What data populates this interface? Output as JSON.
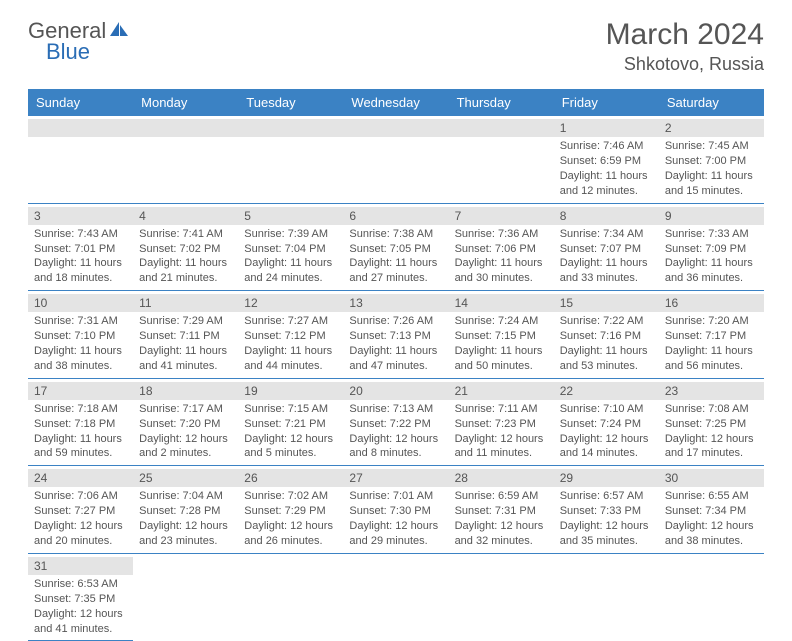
{
  "logo": {
    "general": "General",
    "blue": "Blue"
  },
  "title": "March 2024",
  "location": "Shkotovo, Russia",
  "day_headers": [
    "Sunday",
    "Monday",
    "Tuesday",
    "Wednesday",
    "Thursday",
    "Friday",
    "Saturday"
  ],
  "colors": {
    "header_bg": "#3b82c4",
    "divider": "#3b82c4",
    "daynum_bg": "#e4e4e4",
    "text": "#555555",
    "page_bg": "#ffffff",
    "logo_blue": "#2a6db5"
  },
  "weeks": [
    [
      {
        "empty": true
      },
      {
        "empty": true
      },
      {
        "empty": true
      },
      {
        "empty": true
      },
      {
        "empty": true
      },
      {
        "day": "1",
        "sunrise": "Sunrise: 7:46 AM",
        "sunset": "Sunset: 6:59 PM",
        "daylight": "Daylight: 11 hours and 12 minutes."
      },
      {
        "day": "2",
        "sunrise": "Sunrise: 7:45 AM",
        "sunset": "Sunset: 7:00 PM",
        "daylight": "Daylight: 11 hours and 15 minutes."
      }
    ],
    [
      {
        "day": "3",
        "sunrise": "Sunrise: 7:43 AM",
        "sunset": "Sunset: 7:01 PM",
        "daylight": "Daylight: 11 hours and 18 minutes."
      },
      {
        "day": "4",
        "sunrise": "Sunrise: 7:41 AM",
        "sunset": "Sunset: 7:02 PM",
        "daylight": "Daylight: 11 hours and 21 minutes."
      },
      {
        "day": "5",
        "sunrise": "Sunrise: 7:39 AM",
        "sunset": "Sunset: 7:04 PM",
        "daylight": "Daylight: 11 hours and 24 minutes."
      },
      {
        "day": "6",
        "sunrise": "Sunrise: 7:38 AM",
        "sunset": "Sunset: 7:05 PM",
        "daylight": "Daylight: 11 hours and 27 minutes."
      },
      {
        "day": "7",
        "sunrise": "Sunrise: 7:36 AM",
        "sunset": "Sunset: 7:06 PM",
        "daylight": "Daylight: 11 hours and 30 minutes."
      },
      {
        "day": "8",
        "sunrise": "Sunrise: 7:34 AM",
        "sunset": "Sunset: 7:07 PM",
        "daylight": "Daylight: 11 hours and 33 minutes."
      },
      {
        "day": "9",
        "sunrise": "Sunrise: 7:33 AM",
        "sunset": "Sunset: 7:09 PM",
        "daylight": "Daylight: 11 hours and 36 minutes."
      }
    ],
    [
      {
        "day": "10",
        "sunrise": "Sunrise: 7:31 AM",
        "sunset": "Sunset: 7:10 PM",
        "daylight": "Daylight: 11 hours and 38 minutes."
      },
      {
        "day": "11",
        "sunrise": "Sunrise: 7:29 AM",
        "sunset": "Sunset: 7:11 PM",
        "daylight": "Daylight: 11 hours and 41 minutes."
      },
      {
        "day": "12",
        "sunrise": "Sunrise: 7:27 AM",
        "sunset": "Sunset: 7:12 PM",
        "daylight": "Daylight: 11 hours and 44 minutes."
      },
      {
        "day": "13",
        "sunrise": "Sunrise: 7:26 AM",
        "sunset": "Sunset: 7:13 PM",
        "daylight": "Daylight: 11 hours and 47 minutes."
      },
      {
        "day": "14",
        "sunrise": "Sunrise: 7:24 AM",
        "sunset": "Sunset: 7:15 PM",
        "daylight": "Daylight: 11 hours and 50 minutes."
      },
      {
        "day": "15",
        "sunrise": "Sunrise: 7:22 AM",
        "sunset": "Sunset: 7:16 PM",
        "daylight": "Daylight: 11 hours and 53 minutes."
      },
      {
        "day": "16",
        "sunrise": "Sunrise: 7:20 AM",
        "sunset": "Sunset: 7:17 PM",
        "daylight": "Daylight: 11 hours and 56 minutes."
      }
    ],
    [
      {
        "day": "17",
        "sunrise": "Sunrise: 7:18 AM",
        "sunset": "Sunset: 7:18 PM",
        "daylight": "Daylight: 11 hours and 59 minutes."
      },
      {
        "day": "18",
        "sunrise": "Sunrise: 7:17 AM",
        "sunset": "Sunset: 7:20 PM",
        "daylight": "Daylight: 12 hours and 2 minutes."
      },
      {
        "day": "19",
        "sunrise": "Sunrise: 7:15 AM",
        "sunset": "Sunset: 7:21 PM",
        "daylight": "Daylight: 12 hours and 5 minutes."
      },
      {
        "day": "20",
        "sunrise": "Sunrise: 7:13 AM",
        "sunset": "Sunset: 7:22 PM",
        "daylight": "Daylight: 12 hours and 8 minutes."
      },
      {
        "day": "21",
        "sunrise": "Sunrise: 7:11 AM",
        "sunset": "Sunset: 7:23 PM",
        "daylight": "Daylight: 12 hours and 11 minutes."
      },
      {
        "day": "22",
        "sunrise": "Sunrise: 7:10 AM",
        "sunset": "Sunset: 7:24 PM",
        "daylight": "Daylight: 12 hours and 14 minutes."
      },
      {
        "day": "23",
        "sunrise": "Sunrise: 7:08 AM",
        "sunset": "Sunset: 7:25 PM",
        "daylight": "Daylight: 12 hours and 17 minutes."
      }
    ],
    [
      {
        "day": "24",
        "sunrise": "Sunrise: 7:06 AM",
        "sunset": "Sunset: 7:27 PM",
        "daylight": "Daylight: 12 hours and 20 minutes."
      },
      {
        "day": "25",
        "sunrise": "Sunrise: 7:04 AM",
        "sunset": "Sunset: 7:28 PM",
        "daylight": "Daylight: 12 hours and 23 minutes."
      },
      {
        "day": "26",
        "sunrise": "Sunrise: 7:02 AM",
        "sunset": "Sunset: 7:29 PM",
        "daylight": "Daylight: 12 hours and 26 minutes."
      },
      {
        "day": "27",
        "sunrise": "Sunrise: 7:01 AM",
        "sunset": "Sunset: 7:30 PM",
        "daylight": "Daylight: 12 hours and 29 minutes."
      },
      {
        "day": "28",
        "sunrise": "Sunrise: 6:59 AM",
        "sunset": "Sunset: 7:31 PM",
        "daylight": "Daylight: 12 hours and 32 minutes."
      },
      {
        "day": "29",
        "sunrise": "Sunrise: 6:57 AM",
        "sunset": "Sunset: 7:33 PM",
        "daylight": "Daylight: 12 hours and 35 minutes."
      },
      {
        "day": "30",
        "sunrise": "Sunrise: 6:55 AM",
        "sunset": "Sunset: 7:34 PM",
        "daylight": "Daylight: 12 hours and 38 minutes."
      }
    ],
    [
      {
        "day": "31",
        "sunrise": "Sunrise: 6:53 AM",
        "sunset": "Sunset: 7:35 PM",
        "daylight": "Daylight: 12 hours and 41 minutes."
      },
      {
        "empty": true
      },
      {
        "empty": true
      },
      {
        "empty": true
      },
      {
        "empty": true
      },
      {
        "empty": true
      },
      {
        "empty": true
      }
    ]
  ]
}
